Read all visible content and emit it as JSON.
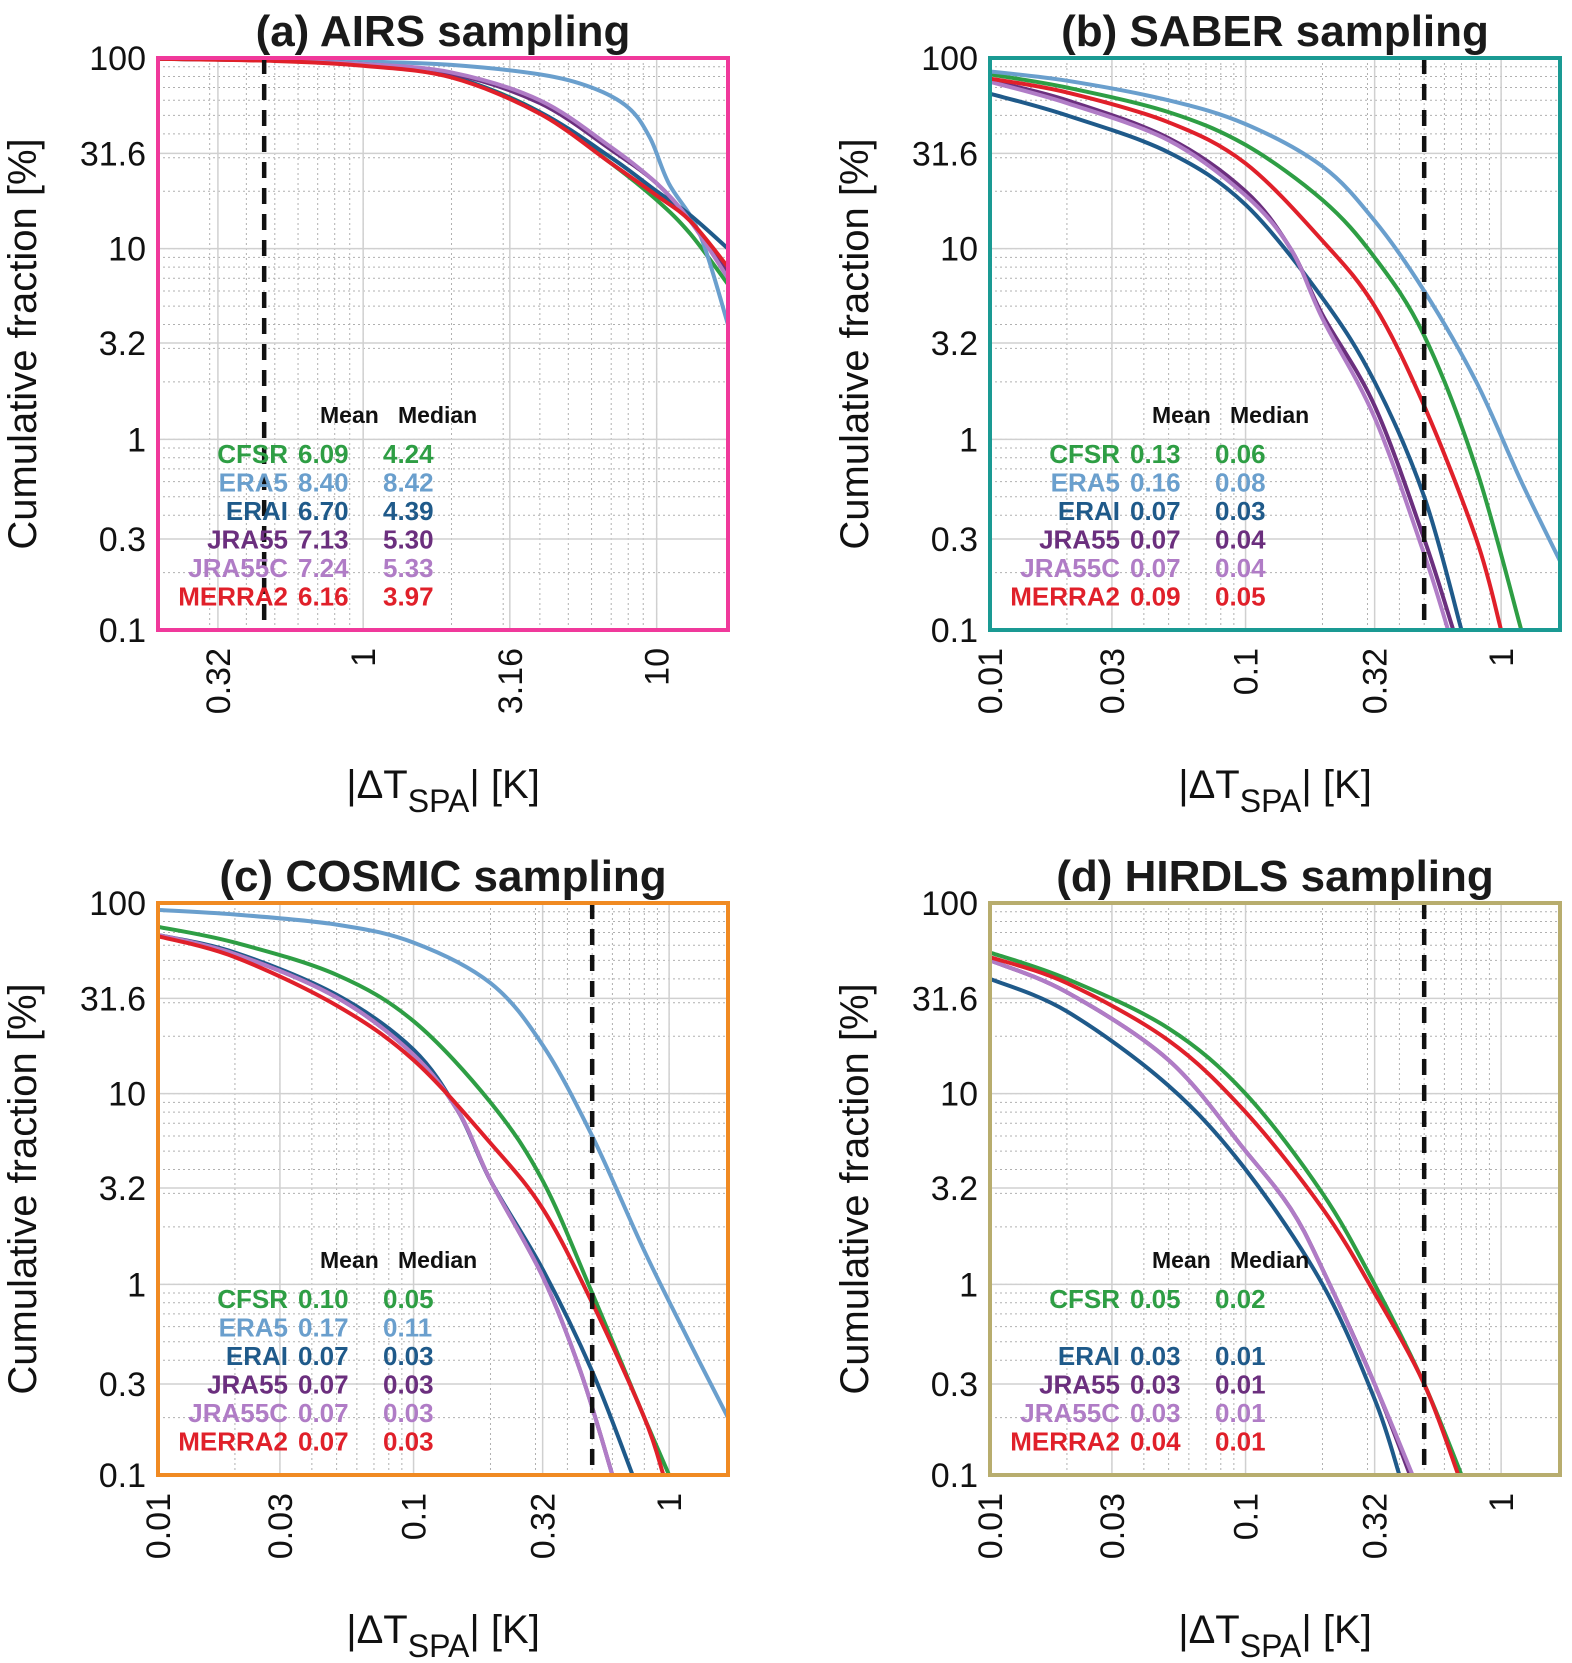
{
  "colors": {
    "CFSR": "#2e9e44",
    "ERA5": "#6a9fcd",
    "ERAI": "#1f5a8a",
    "JRA55": "#6b2f7e",
    "JRA55C": "#b07cc6",
    "MERRA2": "#e0202a"
  },
  "chart_data": [
    {
      "type": "line",
      "id": "a",
      "title": "(a) AIRS sampling",
      "frame_color": "#f0399b",
      "xlabel": "|ΔT",
      "xlabel_sub": "SPA",
      "xlabel_end": "| [K]",
      "ylabel": "Cumulative fraction [%]",
      "xscale": "log",
      "yscale": "log",
      "xlim": [
        0.2,
        17.5
      ],
      "ylim": [
        0.1,
        100
      ],
      "xticks": [
        0.32,
        1,
        3.16,
        10
      ],
      "xtick_labels": [
        "0.32",
        "1",
        "3.16",
        "10"
      ],
      "yticks": [
        100,
        31.6,
        10,
        3.2,
        1,
        0.3,
        0.1
      ],
      "ytick_labels": [
        "100",
        "31.6",
        "10",
        "3.2",
        "1",
        "0.3",
        "0.1"
      ],
      "vline": 0.46,
      "grid": true,
      "stats_header": [
        "Mean",
        "Median"
      ],
      "stats": [
        {
          "name": "CFSR",
          "mean": "6.09",
          "median": "4.24"
        },
        {
          "name": "ERA5",
          "mean": "8.40",
          "median": "8.42"
        },
        {
          "name": "ERAI",
          "mean": "6.70",
          "median": "4.39"
        },
        {
          "name": "JRA55",
          "mean": "7.13",
          "median": "5.30"
        },
        {
          "name": "JRA55C",
          "mean": "7.24",
          "median": "5.33"
        },
        {
          "name": "MERRA2",
          "mean": "6.16",
          "median": "3.97"
        }
      ],
      "series": [
        {
          "name": "CFSR",
          "x": [
            0.2,
            0.5,
            1,
            2,
            4,
            7,
            10,
            13,
            17.5
          ],
          "y": [
            99,
            97,
            92,
            80,
            52,
            28,
            18,
            12,
            6.5
          ]
        },
        {
          "name": "ERA5",
          "x": [
            0.2,
            0.5,
            1,
            2,
            4,
            6,
            8,
            9.5,
            11,
            14,
            17.5
          ],
          "y": [
            99.5,
            98.5,
            96,
            92,
            82,
            70,
            55,
            38,
            22,
            12,
            4
          ]
        },
        {
          "name": "ERAI",
          "x": [
            0.2,
            0.5,
            1,
            2,
            4,
            7,
            10,
            13,
            17.5
          ],
          "y": [
            99,
            97,
            92,
            80,
            52,
            30,
            20,
            15,
            10
          ]
        },
        {
          "name": "JRA55",
          "x": [
            0.2,
            0.5,
            1,
            2,
            4,
            7,
            10,
            13,
            17.5
          ],
          "y": [
            99,
            97,
            93,
            83,
            58,
            33,
            22,
            14,
            7.5
          ]
        },
        {
          "name": "JRA55C",
          "x": [
            0.2,
            0.5,
            1,
            2,
            4,
            7,
            10,
            13,
            17.5
          ],
          "y": [
            99,
            97,
            93,
            84,
            60,
            34,
            22,
            14,
            7
          ]
        },
        {
          "name": "MERRA2",
          "x": [
            0.2,
            0.5,
            1,
            2,
            4,
            7,
            10,
            13,
            17.5
          ],
          "y": [
            99,
            96.5,
            91,
            79,
            51,
            28,
            19,
            14,
            8
          ]
        }
      ]
    },
    {
      "type": "line",
      "id": "b",
      "title": "(b) SABER sampling",
      "frame_color": "#1a9a93",
      "xlabel": "|ΔT",
      "xlabel_sub": "SPA",
      "xlabel_end": "| [K]",
      "ylabel": "Cumulative fraction [%]",
      "xscale": "log",
      "yscale": "log",
      "xlim": [
        0.01,
        1.7
      ],
      "ylim": [
        0.1,
        100
      ],
      "xticks": [
        0.01,
        0.03,
        0.1,
        0.32,
        1
      ],
      "xtick_labels": [
        "0.01",
        "0.03",
        "0.1",
        "0.32",
        "1"
      ],
      "yticks": [
        100,
        31.6,
        10,
        3.2,
        1,
        0.3,
        0.1
      ],
      "ytick_labels": [
        "100",
        "31.6",
        "10",
        "3.2",
        "1",
        "0.3",
        "0.1"
      ],
      "vline": 0.5,
      "grid": true,
      "stats_header": [
        "Mean",
        "Median"
      ],
      "stats": [
        {
          "name": "CFSR",
          "mean": "0.13",
          "median": "0.06"
        },
        {
          "name": "ERA5",
          "mean": "0.16",
          "median": "0.08"
        },
        {
          "name": "ERAI",
          "mean": "0.07",
          "median": "0.03"
        },
        {
          "name": "JRA55",
          "mean": "0.07",
          "median": "0.04"
        },
        {
          "name": "JRA55C",
          "mean": "0.07",
          "median": "0.04"
        },
        {
          "name": "MERRA2",
          "mean": "0.09",
          "median": "0.05"
        }
      ],
      "series": [
        {
          "name": "CFSR",
          "x": [
            0.01,
            0.02,
            0.05,
            0.1,
            0.2,
            0.32,
            0.5,
            0.8,
            1.2
          ],
          "y": [
            82,
            70,
            52,
            35,
            18,
            9,
            3.5,
            0.7,
            0.1
          ]
        },
        {
          "name": "ERA5",
          "x": [
            0.01,
            0.02,
            0.05,
            0.1,
            0.2,
            0.32,
            0.5,
            0.8,
            1.2,
            1.7
          ],
          "y": [
            85,
            76,
            60,
            45,
            27,
            14,
            6,
            2,
            0.6,
            0.23
          ]
        },
        {
          "name": "ERAI",
          "x": [
            0.01,
            0.02,
            0.05,
            0.1,
            0.2,
            0.32,
            0.5,
            0.7
          ],
          "y": [
            65,
            50,
            32,
            17,
            5.5,
            2,
            0.5,
            0.1
          ]
        },
        {
          "name": "JRA55",
          "x": [
            0.01,
            0.02,
            0.05,
            0.1,
            0.15,
            0.2,
            0.32,
            0.5,
            0.65
          ],
          "y": [
            76,
            60,
            38,
            20,
            10,
            4.5,
            1.5,
            0.3,
            0.1
          ]
        },
        {
          "name": "JRA55C",
          "x": [
            0.01,
            0.02,
            0.05,
            0.1,
            0.15,
            0.2,
            0.32,
            0.5,
            0.62
          ],
          "y": [
            75,
            58,
            37,
            19,
            10,
            4.3,
            1.3,
            0.25,
            0.1
          ]
        },
        {
          "name": "MERRA2",
          "x": [
            0.01,
            0.02,
            0.05,
            0.1,
            0.2,
            0.32,
            0.5,
            0.8,
            1.0
          ],
          "y": [
            78,
            66,
            46,
            28,
            11,
            5,
            1.5,
            0.3,
            0.1
          ]
        }
      ]
    },
    {
      "type": "line",
      "id": "c",
      "title": "(c) COSMIC sampling",
      "frame_color": "#f08a22",
      "xlabel": "|ΔT",
      "xlabel_sub": "SPA",
      "xlabel_end": "| [K]",
      "ylabel": "Cumulative fraction [%]",
      "xscale": "log",
      "yscale": "log",
      "xlim": [
        0.01,
        1.7
      ],
      "ylim": [
        0.1,
        100
      ],
      "xticks": [
        0.01,
        0.03,
        0.1,
        0.32,
        1
      ],
      "xtick_labels": [
        "0.01",
        "0.03",
        "0.1",
        "0.32",
        "1"
      ],
      "yticks": [
        100,
        31.6,
        10,
        3.2,
        1,
        0.3,
        0.1
      ],
      "ytick_labels": [
        "100",
        "31.6",
        "10",
        "3.2",
        "1",
        "0.3",
        "0.1"
      ],
      "vline": 0.5,
      "grid": true,
      "stats_header": [
        "Mean",
        "Median"
      ],
      "stats": [
        {
          "name": "CFSR",
          "mean": "0.10",
          "median": "0.05"
        },
        {
          "name": "ERA5",
          "mean": "0.17",
          "median": "0.11"
        },
        {
          "name": "ERAI",
          "mean": "0.07",
          "median": "0.03"
        },
        {
          "name": "JRA55",
          "mean": "0.07",
          "median": "0.03"
        },
        {
          "name": "JRA55C",
          "mean": "0.07",
          "median": "0.03"
        },
        {
          "name": "MERRA2",
          "mean": "0.07",
          "median": "0.03"
        }
      ],
      "series": [
        {
          "name": "CFSR",
          "x": [
            0.01,
            0.02,
            0.05,
            0.1,
            0.2,
            0.32,
            0.5,
            0.8,
            1.0
          ],
          "y": [
            75,
            62,
            42,
            24,
            9,
            3.5,
            0.9,
            0.2,
            0.1
          ]
        },
        {
          "name": "ERA5",
          "x": [
            0.01,
            0.02,
            0.05,
            0.1,
            0.2,
            0.32,
            0.5,
            0.8,
            1.2,
            1.7
          ],
          "y": [
            92,
            87,
            77,
            62,
            38,
            18,
            6,
            1.5,
            0.5,
            0.2
          ]
        },
        {
          "name": "ERAI",
          "x": [
            0.01,
            0.02,
            0.05,
            0.1,
            0.15,
            0.2,
            0.32,
            0.5,
            0.72
          ],
          "y": [
            68,
            55,
            33,
            17,
            8,
            3.5,
            1.2,
            0.35,
            0.1
          ]
        },
        {
          "name": "JRA55",
          "x": [
            0.01,
            0.02,
            0.05,
            0.1,
            0.15,
            0.2,
            0.32,
            0.45,
            0.6
          ],
          "y": [
            68,
            54,
            32,
            16,
            8,
            3.5,
            1.1,
            0.35,
            0.1
          ]
        },
        {
          "name": "JRA55C",
          "x": [
            0.01,
            0.02,
            0.05,
            0.1,
            0.15,
            0.2,
            0.32,
            0.45,
            0.6
          ],
          "y": [
            68,
            54,
            32,
            16,
            8,
            3.5,
            1.1,
            0.35,
            0.1
          ]
        },
        {
          "name": "MERRA2",
          "x": [
            0.01,
            0.02,
            0.05,
            0.1,
            0.2,
            0.32,
            0.5,
            0.8,
            0.95
          ],
          "y": [
            67,
            52,
            29,
            15,
            5.5,
            2.5,
            0.8,
            0.2,
            0.1
          ]
        }
      ]
    },
    {
      "type": "line",
      "id": "d",
      "title": "(d) HIRDLS sampling",
      "frame_color": "#b8ad6e",
      "xlabel": "|ΔT",
      "xlabel_sub": "SPA",
      "xlabel_end": "| [K]",
      "ylabel": "Cumulative fraction [%]",
      "xscale": "log",
      "yscale": "log",
      "xlim": [
        0.01,
        1.7
      ],
      "ylim": [
        0.1,
        100
      ],
      "xticks": [
        0.01,
        0.03,
        0.1,
        0.32,
        1
      ],
      "xtick_labels": [
        "0.01",
        "0.03",
        "0.1",
        "0.32",
        "1"
      ],
      "yticks": [
        100,
        31.6,
        10,
        3.2,
        1,
        0.3,
        0.1
      ],
      "ytick_labels": [
        "100",
        "31.6",
        "10",
        "3.2",
        "1",
        "0.3",
        "0.1"
      ],
      "vline": 0.5,
      "grid": true,
      "stats_header": [
        "Mean",
        "Median"
      ],
      "stats": [
        {
          "name": "CFSR",
          "mean": "0.05",
          "median": "0.02"
        },
        {
          "name": "ERAI",
          "mean": "0.03",
          "median": "0.01"
        },
        {
          "name": "JRA55",
          "mean": "0.03",
          "median": "0.01"
        },
        {
          "name": "JRA55C",
          "mean": "0.03",
          "median": "0.01"
        },
        {
          "name": "MERRA2",
          "mean": "0.04",
          "median": "0.01"
        }
      ],
      "stats_blank_row_after": 0,
      "series": [
        {
          "name": "CFSR",
          "x": [
            0.01,
            0.02,
            0.05,
            0.1,
            0.2,
            0.32,
            0.5,
            0.7
          ],
          "y": [
            55,
            40,
            22,
            10,
            3,
            1,
            0.3,
            0.1
          ]
        },
        {
          "name": "ERAI",
          "x": [
            0.01,
            0.02,
            0.05,
            0.1,
            0.2,
            0.32,
            0.4
          ],
          "y": [
            40,
            27,
            11,
            4,
            1,
            0.25,
            0.1
          ]
        },
        {
          "name": "JRA55",
          "x": [
            0.01,
            0.02,
            0.05,
            0.1,
            0.15,
            0.2,
            0.32,
            0.44
          ],
          "y": [
            50,
            34,
            15,
            5,
            2.5,
            1.2,
            0.3,
            0.1
          ]
        },
        {
          "name": "JRA55C",
          "x": [
            0.01,
            0.02,
            0.05,
            0.1,
            0.15,
            0.2,
            0.32,
            0.45
          ],
          "y": [
            50,
            34,
            15,
            5,
            2.5,
            1.2,
            0.3,
            0.1
          ]
        },
        {
          "name": "MERRA2",
          "x": [
            0.01,
            0.02,
            0.05,
            0.1,
            0.2,
            0.32,
            0.5,
            0.68
          ],
          "y": [
            52,
            38,
            19,
            8,
            2.5,
            0.9,
            0.3,
            0.1
          ]
        }
      ]
    }
  ]
}
